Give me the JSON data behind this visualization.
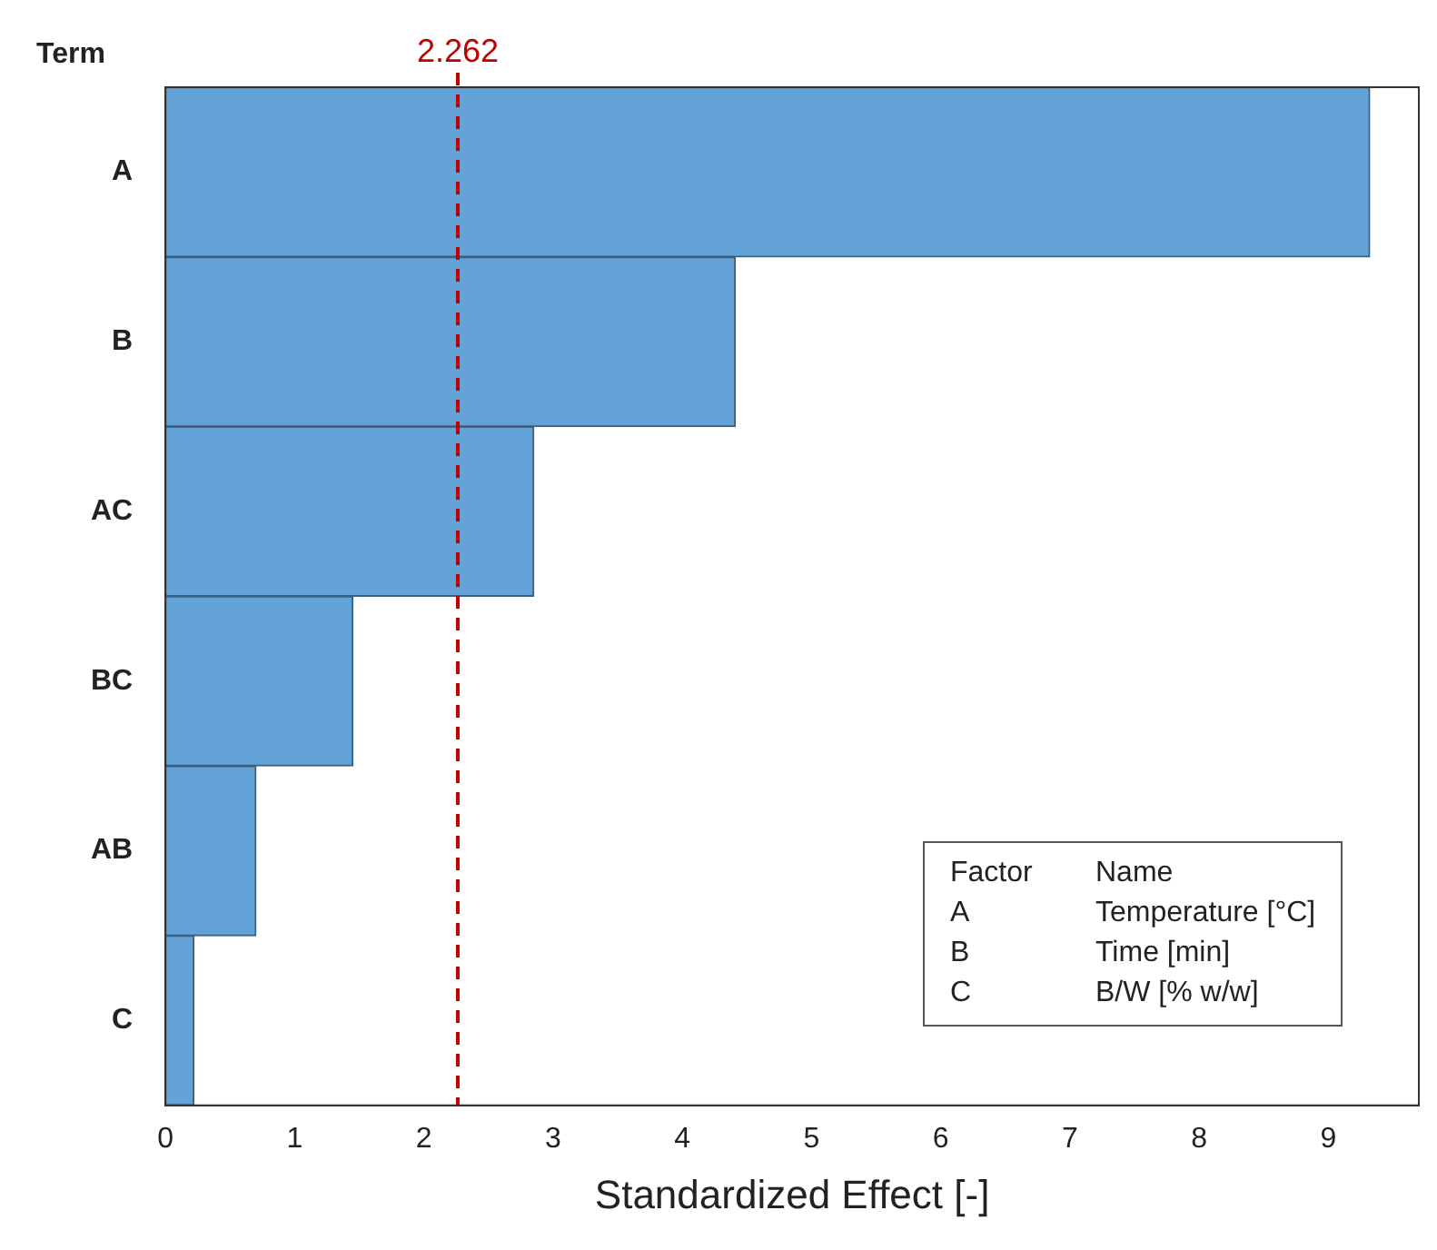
{
  "chart_data": {
    "type": "bar",
    "orientation": "horizontal",
    "ylabel": "Term",
    "xlabel": "Standardized Effect [-]",
    "categories": [
      "A",
      "B",
      "AC",
      "BC",
      "AB",
      "C"
    ],
    "values": [
      9.32,
      4.41,
      2.85,
      1.45,
      0.7,
      0.22
    ],
    "color": "#64a3d8",
    "xlim": [
      0,
      9.7
    ],
    "xticks": [
      0,
      1,
      2,
      3,
      4,
      5,
      6,
      7,
      8,
      9
    ],
    "grid": false,
    "ref_lines": [
      {
        "axis": "x",
        "value": 2.262,
        "label": "2.262",
        "color": "#c00000",
        "line_style": "dashed"
      }
    ],
    "annotations": [
      "Factor",
      "Name",
      "A",
      "Temperature [°C]",
      "B",
      "Time [min]",
      "C",
      "B/W [% w/w]"
    ]
  }
}
